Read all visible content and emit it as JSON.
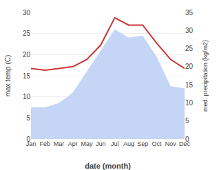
{
  "chart_data": {
    "type": "line",
    "categories": [
      "Jan",
      "Feb",
      "Mar",
      "Apr",
      "May",
      "Jun",
      "Jul",
      "Aug",
      "Sep",
      "Oct",
      "Nov",
      "Dec"
    ],
    "xlabel": "date (month)",
    "ylabel": "max temp (C)",
    "y2label": "med. precipitation (kg/m2)",
    "series": [
      {
        "type": "area",
        "color": "#c5d5f5",
        "values": [
          7.5,
          7.5,
          8.5,
          11.0,
          16.0,
          21.0,
          26.0,
          24.0,
          24.5,
          19.5,
          12.5,
          12.0
        ]
      },
      {
        "type": "line",
        "axis": "y2",
        "color": "#cc3333",
        "values": [
          19.5,
          19.0,
          19.5,
          20.0,
          22.0,
          26.0,
          33.5,
          31.5,
          31.5,
          26.5,
          22.0,
          19.5
        ]
      }
    ],
    "ylim": [
      0,
      30
    ],
    "yticks": [
      0,
      5,
      10,
      15,
      20,
      25,
      30
    ],
    "y2lim": [
      0,
      35
    ],
    "y2ticks": [
      0,
      5,
      10,
      15,
      20,
      25,
      30,
      35
    ],
    "grid": true
  }
}
